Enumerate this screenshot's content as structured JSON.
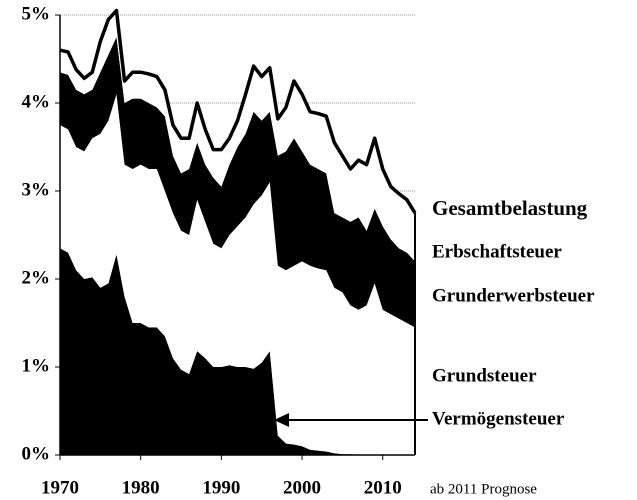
{
  "chart_data": {
    "type": "stacked_area",
    "x": [
      1970,
      1971,
      1972,
      1973,
      1974,
      1975,
      1976,
      1977,
      1978,
      1979,
      1980,
      1981,
      1982,
      1983,
      1984,
      1985,
      1986,
      1987,
      1988,
      1989,
      1990,
      1991,
      1992,
      1993,
      1994,
      1995,
      1996,
      1997,
      1998,
      1999,
      2000,
      2001,
      2002,
      2003,
      2004,
      2005,
      2006,
      2007,
      2008,
      2009,
      2010,
      2011,
      2012,
      2013,
      2014
    ],
    "series": [
      {
        "name": "Vermögensteuer",
        "color": "#000000",
        "values": [
          2.35,
          2.3,
          2.1,
          2.0,
          2.02,
          1.9,
          1.95,
          2.28,
          1.8,
          1.5,
          1.5,
          1.45,
          1.45,
          1.35,
          1.1,
          0.97,
          0.92,
          1.18,
          1.1,
          1.0,
          1.0,
          1.02,
          1.0,
          1.0,
          0.98,
          1.05,
          1.18,
          0.22,
          0.13,
          0.12,
          0.1,
          0.06,
          0.05,
          0.04,
          0.02,
          0.01,
          0.01,
          0,
          0,
          0,
          0,
          0,
          0,
          0,
          0
        ]
      },
      {
        "name": "Grundsteuer",
        "color": "#ffffff",
        "values": [
          1.4,
          1.4,
          1.4,
          1.45,
          1.58,
          1.75,
          1.85,
          1.82,
          1.5,
          1.75,
          1.8,
          1.8,
          1.8,
          1.65,
          1.65,
          1.58,
          1.58,
          1.72,
          1.55,
          1.4,
          1.35,
          1.48,
          1.6,
          1.7,
          1.87,
          1.9,
          1.92,
          1.93,
          1.97,
          2.03,
          2.1,
          2.09,
          2.07,
          2.06,
          1.88,
          1.84,
          1.69,
          1.65,
          1.7,
          1.95,
          1.65,
          1.6,
          1.55,
          1.5,
          1.45
        ]
      },
      {
        "name": "Grunderwerbsteuer",
        "color": "#000000",
        "values": [
          0.6,
          0.62,
          0.65,
          0.65,
          0.55,
          0.7,
          0.75,
          0.65,
          0.7,
          0.8,
          0.75,
          0.75,
          0.7,
          0.85,
          0.65,
          0.65,
          0.75,
          0.65,
          0.65,
          0.75,
          0.7,
          0.8,
          0.9,
          0.95,
          1.05,
          0.85,
          0.8,
          1.25,
          1.35,
          1.45,
          1.25,
          1.15,
          1.13,
          1.1,
          0.85,
          0.85,
          0.95,
          1.05,
          0.85,
          0.85,
          0.95,
          0.85,
          0.8,
          0.8,
          0.75
        ]
      },
      {
        "name": "Erbschaftsteuer",
        "color": "#ffffff",
        "values": [
          0.25,
          0.26,
          0.23,
          0.18,
          0.2,
          0.35,
          0.4,
          0.3,
          0.25,
          0.3,
          0.3,
          0.33,
          0.35,
          0.3,
          0.35,
          0.4,
          0.35,
          0.45,
          0.4,
          0.32,
          0.42,
          0.3,
          0.3,
          0.45,
          0.52,
          0.5,
          0.5,
          0.42,
          0.5,
          0.65,
          0.65,
          0.6,
          0.63,
          0.65,
          0.8,
          0.7,
          0.6,
          0.65,
          0.75,
          0.8,
          0.65,
          0.6,
          0.62,
          0.6,
          0.55
        ]
      }
    ],
    "total_label": "Gesamtbelastung",
    "note": "ab 2011 Prognose",
    "xlim": [
      1970,
      2014
    ],
    "xticks": [
      1970,
      1980,
      1990,
      2000,
      2010
    ],
    "ylim": [
      0,
      5
    ],
    "yticks": [
      {
        "value": 0,
        "label": "0%"
      },
      {
        "value": 1,
        "label": "1%"
      },
      {
        "value": 2,
        "label": "2%"
      },
      {
        "value": 3,
        "label": "3%"
      },
      {
        "value": 4,
        "label": "4%"
      },
      {
        "value": 5,
        "label": "5%"
      }
    ],
    "grid": true
  }
}
